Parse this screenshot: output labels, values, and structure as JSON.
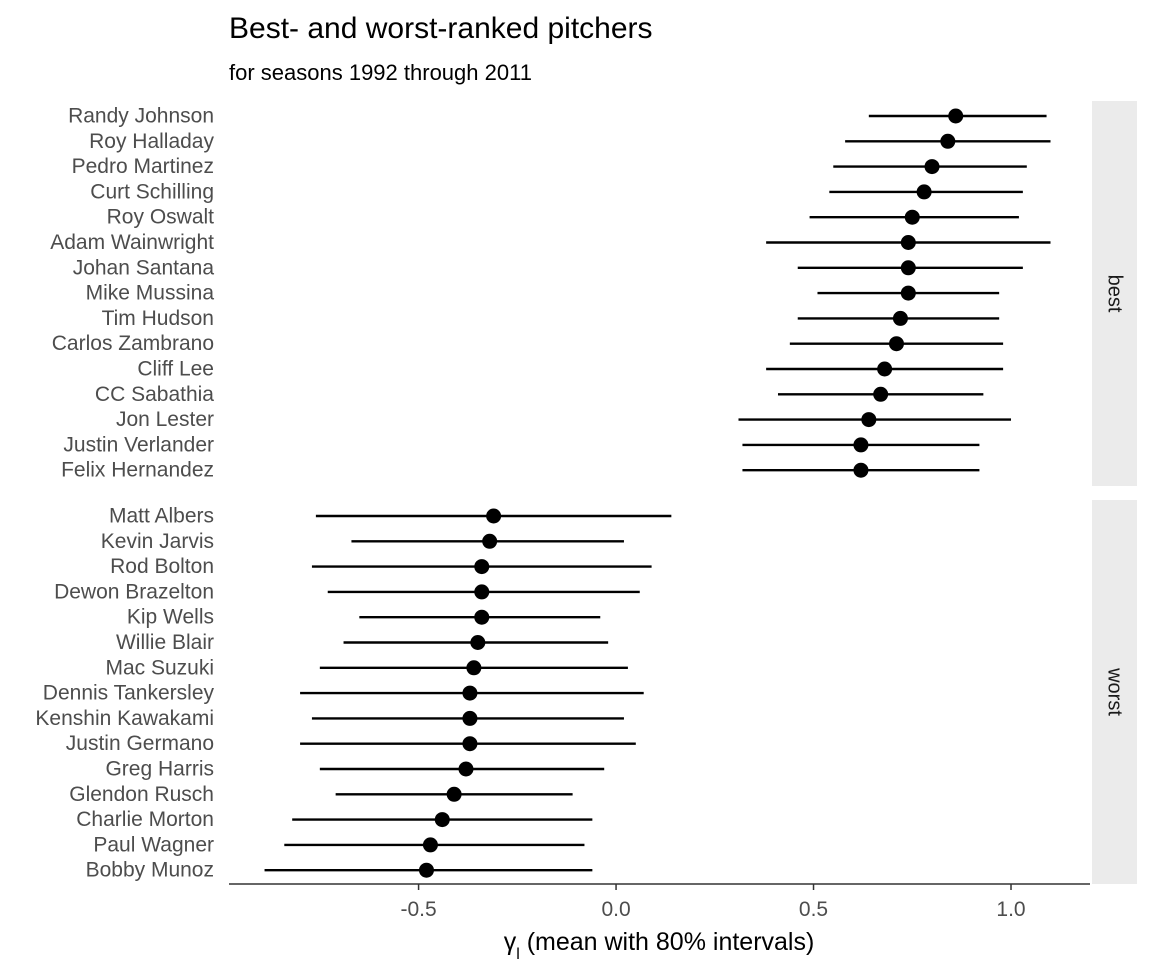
{
  "chart_data": {
    "type": "scatter",
    "title": "Best- and worst-ranked pitchers",
    "subtitle": "for seasons 1992 through 2011",
    "xlabel": "γ_l (mean with 80% intervals)",
    "xlabel_symbol": "γ",
    "xlabel_subscript": "l",
    "xlabel_rest": " (mean with 80% intervals)",
    "xlim": [
      -0.98,
      1.2
    ],
    "xticks": [
      -0.5,
      0.0,
      0.5,
      1.0
    ],
    "xtick_labels": [
      "-0.5",
      "0.0",
      "0.5",
      "1.0"
    ],
    "grid": false,
    "strip_color": "#ebebeb",
    "point_color": "#000000",
    "panels": [
      {
        "name": "best",
        "items": [
          {
            "label": "Randy Johnson",
            "mean": 0.86,
            "low": 0.64,
            "high": 1.09
          },
          {
            "label": "Roy Halladay",
            "mean": 0.84,
            "low": 0.58,
            "high": 1.1
          },
          {
            "label": "Pedro Martinez",
            "mean": 0.8,
            "low": 0.55,
            "high": 1.04
          },
          {
            "label": "Curt Schilling",
            "mean": 0.78,
            "low": 0.54,
            "high": 1.03
          },
          {
            "label": "Roy Oswalt",
            "mean": 0.75,
            "low": 0.49,
            "high": 1.02
          },
          {
            "label": "Adam Wainwright",
            "mean": 0.74,
            "low": 0.38,
            "high": 1.1
          },
          {
            "label": "Johan Santana",
            "mean": 0.74,
            "low": 0.46,
            "high": 1.03
          },
          {
            "label": "Mike Mussina",
            "mean": 0.74,
            "low": 0.51,
            "high": 0.97
          },
          {
            "label": "Tim Hudson",
            "mean": 0.72,
            "low": 0.46,
            "high": 0.97
          },
          {
            "label": "Carlos Zambrano",
            "mean": 0.71,
            "low": 0.44,
            "high": 0.98
          },
          {
            "label": "Cliff Lee",
            "mean": 0.68,
            "low": 0.38,
            "high": 0.98
          },
          {
            "label": "CC Sabathia",
            "mean": 0.67,
            "low": 0.41,
            "high": 0.93
          },
          {
            "label": "Jon Lester",
            "mean": 0.64,
            "low": 0.31,
            "high": 1.0
          },
          {
            "label": "Justin Verlander",
            "mean": 0.62,
            "low": 0.32,
            "high": 0.92
          },
          {
            "label": "Felix Hernandez",
            "mean": 0.62,
            "low": 0.32,
            "high": 0.92
          }
        ]
      },
      {
        "name": "worst",
        "items": [
          {
            "label": "Matt Albers",
            "mean": -0.31,
            "low": -0.76,
            "high": 0.14
          },
          {
            "label": "Kevin Jarvis",
            "mean": -0.32,
            "low": -0.67,
            "high": 0.02
          },
          {
            "label": "Rod Bolton",
            "mean": -0.34,
            "low": -0.77,
            "high": 0.09
          },
          {
            "label": "Dewon Brazelton",
            "mean": -0.34,
            "low": -0.73,
            "high": 0.06
          },
          {
            "label": "Kip Wells",
            "mean": -0.34,
            "low": -0.65,
            "high": -0.04
          },
          {
            "label": "Willie Blair",
            "mean": -0.35,
            "low": -0.69,
            "high": -0.02
          },
          {
            "label": "Mac Suzuki",
            "mean": -0.36,
            "low": -0.75,
            "high": 0.03
          },
          {
            "label": "Dennis Tankersley",
            "mean": -0.37,
            "low": -0.8,
            "high": 0.07
          },
          {
            "label": "Kenshin Kawakami",
            "mean": -0.37,
            "low": -0.77,
            "high": 0.02
          },
          {
            "label": "Justin Germano",
            "mean": -0.37,
            "low": -0.8,
            "high": 0.05
          },
          {
            "label": "Greg Harris",
            "mean": -0.38,
            "low": -0.75,
            "high": -0.03
          },
          {
            "label": "Glendon Rusch",
            "mean": -0.41,
            "low": -0.71,
            "high": -0.11
          },
          {
            "label": "Charlie Morton",
            "mean": -0.44,
            "low": -0.82,
            "high": -0.06
          },
          {
            "label": "Paul Wagner",
            "mean": -0.47,
            "low": -0.84,
            "high": -0.08
          },
          {
            "label": "Bobby Munoz",
            "mean": -0.48,
            "low": -0.89,
            "high": -0.06
          }
        ]
      }
    ]
  }
}
